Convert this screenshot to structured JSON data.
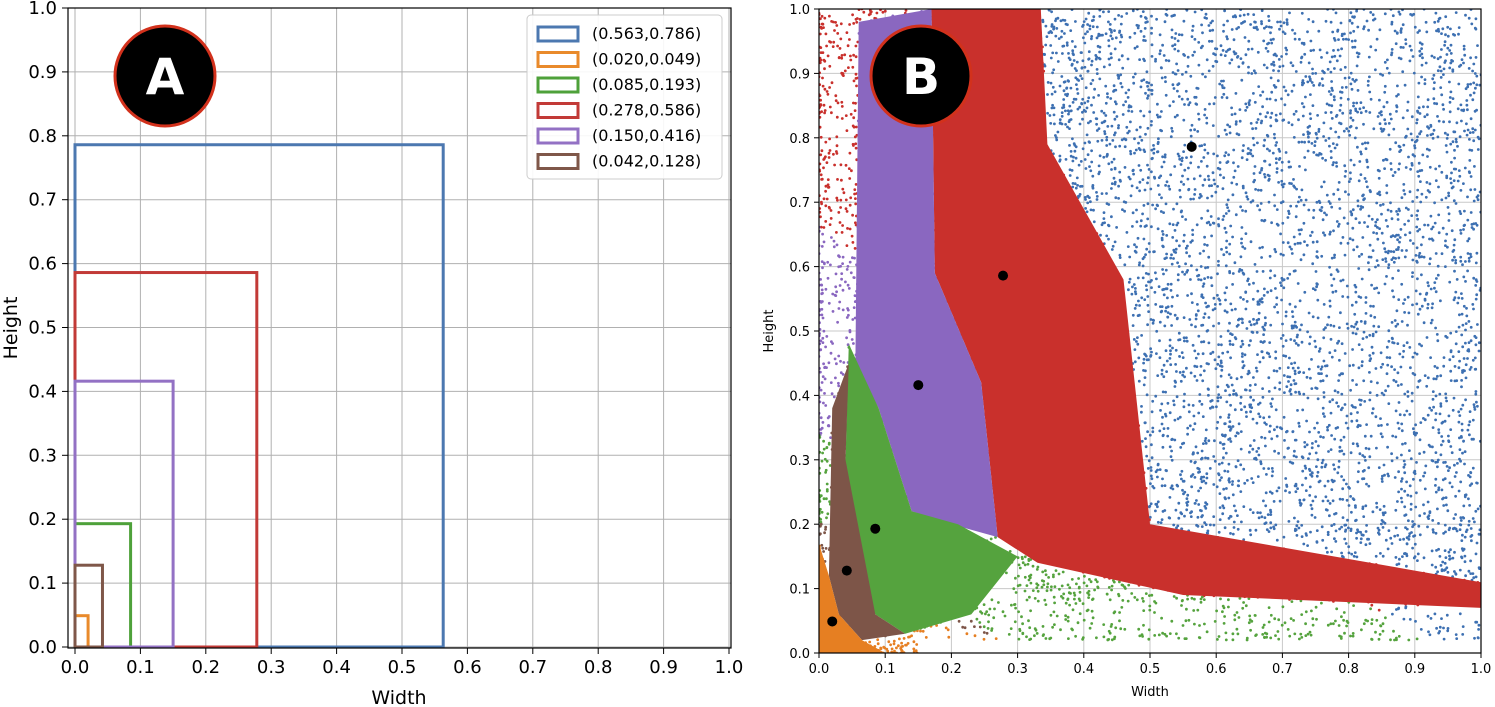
{
  "chart_data": [
    {
      "panel": "A",
      "type": "line",
      "subtype": "anchor-box rectangles",
      "xlabel": "Width",
      "ylabel": "Height",
      "xlim": [
        0.0,
        1.0
      ],
      "ylim": [
        0.0,
        1.0
      ],
      "grid": true,
      "xticks": [
        "0.0",
        "0.1",
        "0.2",
        "0.3",
        "0.4",
        "0.5",
        "0.6",
        "0.7",
        "0.8",
        "0.9",
        "1.0"
      ],
      "yticks": [
        "0.0",
        "0.1",
        "0.2",
        "0.3",
        "0.4",
        "0.5",
        "0.6",
        "0.7",
        "0.8",
        "0.9",
        "1.0"
      ],
      "legend_position": "top-right",
      "series": [
        {
          "name": "(0.563,0.786)",
          "width": 0.563,
          "height": 0.786,
          "color": "#4c78b0"
        },
        {
          "name": "(0.020,0.049)",
          "width": 0.02,
          "height": 0.049,
          "color": "#e98a2b"
        },
        {
          "name": "(0.085,0.193)",
          "width": 0.085,
          "height": 0.193,
          "color": "#4ea13a"
        },
        {
          "name": "(0.278,0.586)",
          "width": 0.278,
          "height": 0.586,
          "color": "#c23a37"
        },
        {
          "name": "(0.150,0.416)",
          "width": 0.15,
          "height": 0.416,
          "color": "#9371c4"
        },
        {
          "name": "(0.042,0.128)",
          "width": 0.042,
          "height": 0.128,
          "color": "#7f5749"
        }
      ]
    },
    {
      "panel": "B",
      "type": "scatter",
      "subtype": "k-means clusters of box sizes",
      "xlabel": "Width",
      "ylabel": "Height",
      "xlim": [
        0.0,
        1.0
      ],
      "ylim": [
        0.0,
        1.0
      ],
      "grid": true,
      "xticks": [
        "0.0",
        "0.1",
        "0.2",
        "0.3",
        "0.4",
        "0.5",
        "0.6",
        "0.7",
        "0.8",
        "0.9",
        "1.0"
      ],
      "yticks": [
        "0.0",
        "0.1",
        "0.2",
        "0.3",
        "0.4",
        "0.5",
        "0.6",
        "0.7",
        "0.8",
        "0.9",
        "1.0"
      ],
      "centroid_color": "#000000",
      "clusters": [
        {
          "color": "#3d70b2",
          "centroid": [
            0.563,
            0.786
          ],
          "region": [
            [
              0.335,
              1.0
            ],
            [
              1.0,
              1.0
            ],
            [
              1.0,
              0.11
            ],
            [
              0.5,
              0.2
            ],
            [
              0.46,
              0.58
            ],
            [
              0.345,
              0.79
            ]
          ]
        },
        {
          "color": "#c9302c",
          "centroid": [
            0.278,
            0.586
          ],
          "region": [
            [
              0.17,
              1.0
            ],
            [
              0.335,
              1.0
            ],
            [
              0.345,
              0.79
            ],
            [
              0.46,
              0.58
            ],
            [
              0.5,
              0.2
            ],
            [
              1.0,
              0.11
            ],
            [
              1.0,
              0.07
            ],
            [
              0.55,
              0.09
            ],
            [
              0.33,
              0.14
            ],
            [
              0.27,
              0.18
            ],
            [
              0.245,
              0.42
            ],
            [
              0.175,
              0.59
            ]
          ]
        },
        {
          "color": "#8a67c0",
          "centroid": [
            0.15,
            0.416
          ],
          "region": [
            [
              0.06,
              0.98
            ],
            [
              0.17,
              1.0
            ],
            [
              0.175,
              0.59
            ],
            [
              0.245,
              0.42
            ],
            [
              0.27,
              0.18
            ],
            [
              0.2,
              0.2
            ],
            [
              0.14,
              0.22
            ],
            [
              0.09,
              0.38
            ],
            [
              0.055,
              0.45
            ]
          ]
        },
        {
          "color": "#55a33e",
          "centroid": [
            0.085,
            0.193
          ],
          "region": [
            [
              0.045,
              0.48
            ],
            [
              0.09,
              0.38
            ],
            [
              0.14,
              0.22
            ],
            [
              0.21,
              0.2
            ],
            [
              0.3,
              0.15
            ],
            [
              0.23,
              0.06
            ],
            [
              0.13,
              0.03
            ],
            [
              0.085,
              0.06
            ],
            [
              0.04,
              0.15
            ],
            [
              0.04,
              0.3
            ]
          ]
        },
        {
          "color": "#7d5548",
          "centroid": [
            0.042,
            0.128
          ],
          "region": [
            [
              0.02,
              0.38
            ],
            [
              0.045,
              0.45
            ],
            [
              0.04,
              0.3
            ],
            [
              0.085,
              0.06
            ],
            [
              0.13,
              0.03
            ],
            [
              0.065,
              0.02
            ],
            [
              0.03,
              0.06
            ],
            [
              0.015,
              0.12
            ]
          ]
        },
        {
          "color": "#e67f22",
          "centroid": [
            0.02,
            0.049
          ],
          "region": [
            [
              0.0,
              0.0
            ],
            [
              0.0,
              0.17
            ],
            [
              0.015,
              0.12
            ],
            [
              0.03,
              0.06
            ],
            [
              0.065,
              0.02
            ],
            [
              0.1,
              0.0
            ]
          ]
        }
      ]
    }
  ],
  "panels": {
    "a": {
      "badge": "A"
    },
    "b": {
      "badge": "B"
    }
  }
}
